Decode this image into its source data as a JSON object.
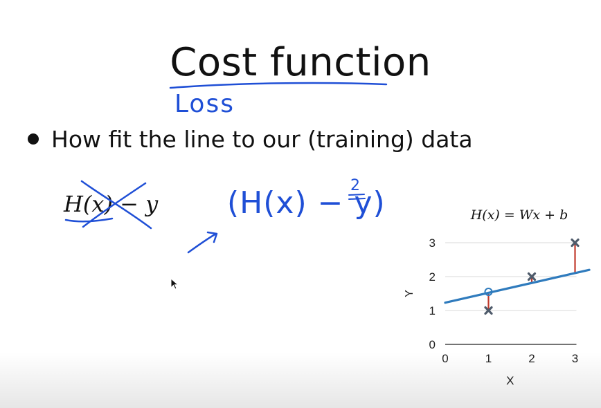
{
  "slide": {
    "title": "Cost function",
    "bullet": "How fit the line to our (training) data",
    "formula": "H(x) − y"
  },
  "annotations": {
    "loss": "Loss",
    "squared": "(H(x) − y)",
    "exponent": "2"
  },
  "colors": {
    "ink": "#1f4fd6",
    "regression_line": "#2f7bbd",
    "residual": "#c0392b",
    "marker": "#4f5b6b"
  },
  "chart_data": {
    "type": "scatter",
    "title": "H(x) = Wx + b",
    "xlabel": "X",
    "ylabel": "Y",
    "xlim": [
      0,
      3
    ],
    "ylim": [
      0,
      3
    ],
    "xticks": [
      "0",
      "1",
      "2",
      "3"
    ],
    "yticks": [
      "0",
      "1",
      "2",
      "3"
    ],
    "grid": true,
    "points": [
      {
        "x": 1,
        "y": 1
      },
      {
        "x": 2,
        "y": 2
      },
      {
        "x": 3,
        "y": 3
      }
    ],
    "line": {
      "x0": 0,
      "y0": 1.23,
      "x1": 3.33,
      "y1": 2.2
    },
    "highlighted_prediction": {
      "x": 1,
      "y": 1.55
    },
    "residuals": [
      {
        "x": 1,
        "from": 1,
        "to": 1.55
      },
      {
        "x": 2,
        "from": 2,
        "to": 1.84
      },
      {
        "x": 3,
        "from": 3,
        "to": 2.13
      }
    ]
  }
}
